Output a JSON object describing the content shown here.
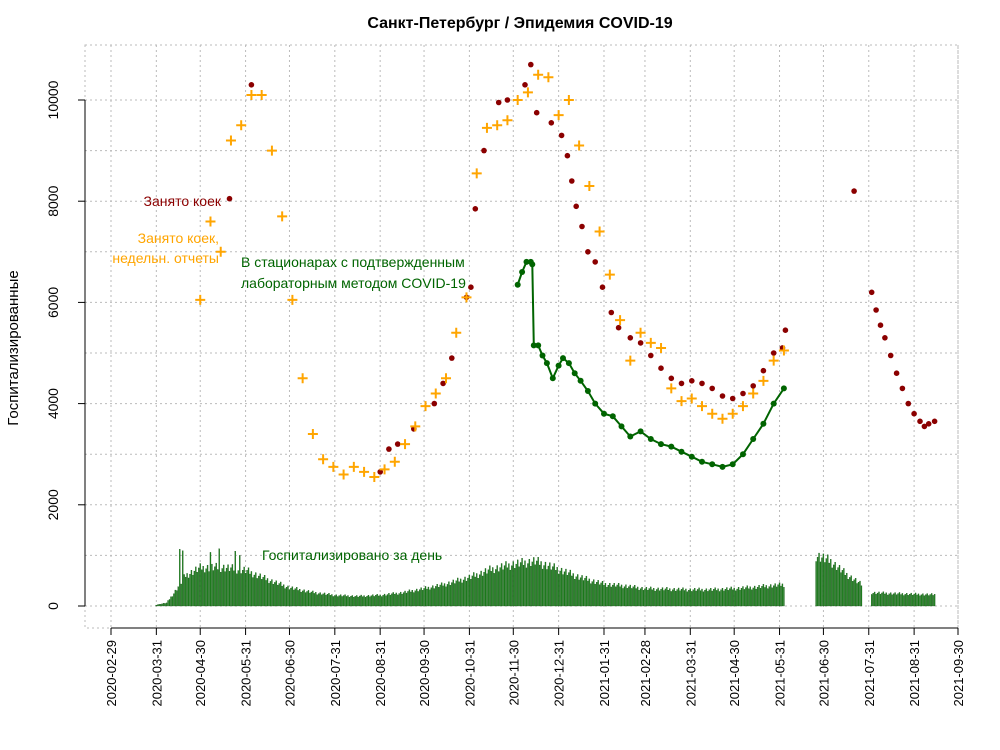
{
  "chart_data": {
    "type": "line",
    "title": "Санкт-Петербург / Эпидемия COVID-19",
    "ylabel": "Госпитализированные",
    "xlabel": "",
    "x_ticks": [
      "2020-02-29",
      "2020-03-31",
      "2020-04-30",
      "2020-05-31",
      "2020-06-30",
      "2020-07-31",
      "2020-08-31",
      "2020-09-30",
      "2020-10-31",
      "2020-11-30",
      "2020-12-31",
      "2021-01-31",
      "2021-02-28",
      "2021-03-31",
      "2021-04-30",
      "2021-05-31",
      "2021-06-30",
      "2021-07-31",
      "2021-08-31",
      "2021-09-30"
    ],
    "y_ticks": [
      0,
      2000,
      4000,
      6000,
      8000,
      10000
    ],
    "ylim": [
      0,
      10800
    ],
    "grid": true,
    "colors": {
      "occupied": "#8b0000",
      "weekly": "#ffa500",
      "confirmed": "#006400",
      "daily": "#228b22"
    },
    "annotations": {
      "occupied": "Занято коек",
      "weekly_line1": "Занято коек,",
      "weekly_line2": "недельн. отчеты",
      "confirmed_line1": "В стационарах с подтвержденным",
      "confirmed_line2": "лабораторным методом COVID-19",
      "daily": "Госпитализировано за день"
    },
    "series": [
      {
        "name": "Занято коек",
        "style": "points",
        "points": [
          [
            "2020-05-20",
            8050
          ],
          [
            "2020-06-04",
            10300
          ],
          [
            "2020-09-23",
            3500
          ],
          [
            "2020-10-07",
            4000
          ],
          [
            "2020-10-13",
            4400
          ],
          [
            "2020-10-19",
            4900
          ],
          [
            "2020-10-29",
            6100
          ],
          [
            "2020-11-01",
            6300
          ],
          [
            "2020-11-04",
            7850
          ],
          [
            "2020-11-10",
            9000
          ],
          [
            "2020-11-20",
            9950
          ],
          [
            "2020-11-26",
            10000
          ],
          [
            "2020-12-08",
            10300
          ],
          [
            "2020-12-12",
            10700
          ],
          [
            "2020-12-16",
            9750
          ],
          [
            "2020-08-31",
            2650
          ],
          [
            "2020-09-06",
            3100
          ],
          [
            "2020-09-12",
            3200
          ],
          [
            "2020-12-26",
            9550
          ],
          [
            "2021-01-02",
            9300
          ],
          [
            "2021-01-06",
            8900
          ],
          [
            "2021-01-09",
            8400
          ],
          [
            "2021-01-12",
            7900
          ],
          [
            "2021-01-16",
            7500
          ],
          [
            "2021-01-20",
            7000
          ],
          [
            "2021-01-25",
            6800
          ],
          [
            "2021-01-30",
            6300
          ],
          [
            "2021-02-05",
            5800
          ],
          [
            "2021-02-10",
            5500
          ],
          [
            "2021-02-18",
            5300
          ],
          [
            "2021-02-25",
            5200
          ],
          [
            "2021-03-04",
            4950
          ],
          [
            "2021-03-11",
            4700
          ],
          [
            "2021-03-18",
            4500
          ],
          [
            "2021-03-25",
            4400
          ],
          [
            "2021-04-01",
            4450
          ],
          [
            "2021-04-08",
            4400
          ],
          [
            "2021-04-15",
            4300
          ],
          [
            "2021-04-22",
            4150
          ],
          [
            "2021-04-29",
            4100
          ],
          [
            "2021-05-06",
            4200
          ],
          [
            "2021-05-13",
            4350
          ],
          [
            "2021-05-20",
            4650
          ],
          [
            "2021-05-27",
            5000
          ],
          [
            "2021-06-02",
            5100
          ],
          [
            "2021-06-04",
            5450
          ],
          [
            "2021-07-21",
            8200
          ],
          [
            "2021-08-02",
            6200
          ],
          [
            "2021-08-05",
            5850
          ],
          [
            "2021-08-08",
            5550
          ],
          [
            "2021-08-11",
            5300
          ],
          [
            "2021-08-15",
            4950
          ],
          [
            "2021-08-19",
            4600
          ],
          [
            "2021-08-23",
            4300
          ],
          [
            "2021-08-27",
            4000
          ],
          [
            "2021-08-31",
            3800
          ],
          [
            "2021-09-04",
            3650
          ],
          [
            "2021-09-07",
            3550
          ],
          [
            "2021-09-10",
            3600
          ],
          [
            "2021-09-14",
            3650
          ]
        ]
      },
      {
        "name": "Занято коек, недельн. отчеты",
        "style": "plus",
        "points": [
          [
            "2020-04-30",
            6050
          ],
          [
            "2020-05-07",
            7600
          ],
          [
            "2020-05-14",
            7000
          ],
          [
            "2020-05-21",
            9200
          ],
          [
            "2020-05-28",
            9500
          ],
          [
            "2020-06-04",
            10100
          ],
          [
            "2020-06-11",
            10100
          ],
          [
            "2020-06-18",
            9000
          ],
          [
            "2020-06-25",
            7700
          ],
          [
            "2020-07-02",
            6050
          ],
          [
            "2020-07-09",
            4500
          ],
          [
            "2020-07-16",
            3400
          ],
          [
            "2020-07-23",
            2900
          ],
          [
            "2020-07-30",
            2750
          ],
          [
            "2020-08-06",
            2600
          ],
          [
            "2020-08-13",
            2750
          ],
          [
            "2020-08-20",
            2650
          ],
          [
            "2020-08-27",
            2550
          ],
          [
            "2020-09-03",
            2700
          ],
          [
            "2020-09-10",
            2850
          ],
          [
            "2020-09-17",
            3200
          ],
          [
            "2020-09-24",
            3550
          ],
          [
            "2020-10-01",
            3950
          ],
          [
            "2020-10-08",
            4200
          ],
          [
            "2020-10-15",
            4500
          ],
          [
            "2020-10-22",
            5400
          ],
          [
            "2020-10-29",
            6100
          ],
          [
            "2020-11-05",
            8550
          ],
          [
            "2020-11-12",
            9450
          ],
          [
            "2020-11-19",
            9500
          ],
          [
            "2020-11-26",
            9600
          ],
          [
            "2020-12-03",
            10000
          ],
          [
            "2020-12-10",
            10150
          ],
          [
            "2020-12-17",
            10500
          ],
          [
            "2020-12-24",
            10450
          ],
          [
            "2020-12-31",
            9700
          ],
          [
            "2021-01-07",
            10000
          ],
          [
            "2021-01-14",
            9100
          ],
          [
            "2021-01-21",
            8300
          ],
          [
            "2021-01-28",
            7400
          ],
          [
            "2021-02-04",
            6550
          ],
          [
            "2021-02-11",
            5650
          ],
          [
            "2021-02-18",
            4850
          ],
          [
            "2021-02-25",
            5400
          ],
          [
            "2021-03-04",
            5200
          ],
          [
            "2021-03-11",
            5100
          ],
          [
            "2021-03-18",
            4300
          ],
          [
            "2021-03-25",
            4050
          ],
          [
            "2021-04-01",
            4100
          ],
          [
            "2021-04-08",
            3950
          ],
          [
            "2021-04-15",
            3800
          ],
          [
            "2021-04-22",
            3700
          ],
          [
            "2021-04-29",
            3800
          ],
          [
            "2021-05-06",
            3950
          ],
          [
            "2021-05-13",
            4200
          ],
          [
            "2021-05-20",
            4450
          ],
          [
            "2021-05-27",
            4850
          ],
          [
            "2021-06-03",
            5050
          ]
        ]
      },
      {
        "name": "В стационарах с подтвержденным лабораторным методом COVID-19",
        "style": "line",
        "points": [
          [
            "2020-12-03",
            6350
          ],
          [
            "2020-12-06",
            6600
          ],
          [
            "2020-12-09",
            6800
          ],
          [
            "2020-12-12",
            6800
          ],
          [
            "2020-12-13",
            6750
          ],
          [
            "2020-12-14",
            5150
          ],
          [
            "2020-12-17",
            5150
          ],
          [
            "2020-12-20",
            4950
          ],
          [
            "2020-12-23",
            4800
          ],
          [
            "2020-12-27",
            4500
          ],
          [
            "2020-12-31",
            4750
          ],
          [
            "2021-01-03",
            4900
          ],
          [
            "2021-01-07",
            4800
          ],
          [
            "2021-01-11",
            4600
          ],
          [
            "2021-01-15",
            4450
          ],
          [
            "2021-01-20",
            4250
          ],
          [
            "2021-01-25",
            4000
          ],
          [
            "2021-01-31",
            3800
          ],
          [
            "2021-02-06",
            3750
          ],
          [
            "2021-02-12",
            3550
          ],
          [
            "2021-02-18",
            3350
          ],
          [
            "2021-02-25",
            3450
          ],
          [
            "2021-03-04",
            3300
          ],
          [
            "2021-03-11",
            3200
          ],
          [
            "2021-03-18",
            3150
          ],
          [
            "2021-03-25",
            3050
          ],
          [
            "2021-04-01",
            2950
          ],
          [
            "2021-04-08",
            2850
          ],
          [
            "2021-04-15",
            2800
          ],
          [
            "2021-04-22",
            2750
          ],
          [
            "2021-04-29",
            2800
          ],
          [
            "2021-05-06",
            3000
          ],
          [
            "2021-05-13",
            3300
          ],
          [
            "2021-05-20",
            3600
          ],
          [
            "2021-05-27",
            4000
          ],
          [
            "2021-06-03",
            4300
          ]
        ]
      },
      {
        "name": "Госпитализировано за день",
        "style": "bars",
        "level_points": [
          [
            "2020-03-31",
            20
          ],
          [
            "2020-04-07",
            60
          ],
          [
            "2020-04-12",
            250
          ],
          [
            "2020-04-20",
            600
          ],
          [
            "2020-04-30",
            750
          ],
          [
            "2020-05-15",
            760
          ],
          [
            "2020-05-31",
            700
          ],
          [
            "2020-06-15",
            520
          ],
          [
            "2020-06-30",
            360
          ],
          [
            "2020-07-15",
            270
          ],
          [
            "2020-07-31",
            210
          ],
          [
            "2020-08-15",
            190
          ],
          [
            "2020-08-31",
            210
          ],
          [
            "2020-09-15",
            260
          ],
          [
            "2020-09-30",
            340
          ],
          [
            "2020-10-15",
            430
          ],
          [
            "2020-10-31",
            560
          ],
          [
            "2020-11-15",
            720
          ],
          [
            "2020-11-30",
            820
          ],
          [
            "2020-12-15",
            880
          ],
          [
            "2020-12-31",
            720
          ],
          [
            "2021-01-15",
            560
          ],
          [
            "2021-01-31",
            430
          ],
          [
            "2021-02-15",
            390
          ],
          [
            "2021-02-28",
            340
          ],
          [
            "2021-03-15",
            330
          ],
          [
            "2021-03-31",
            320
          ],
          [
            "2021-04-15",
            320
          ],
          [
            "2021-04-30",
            340
          ],
          [
            "2021-05-15",
            370
          ],
          [
            "2021-06-03",
            420
          ]
        ],
        "level_points_2": [
          [
            "2021-06-25",
            1000
          ],
          [
            "2021-07-05",
            880
          ],
          [
            "2021-07-15",
            640
          ],
          [
            "2021-07-26",
            420
          ]
        ],
        "level_points_3": [
          [
            "2021-08-02",
            260
          ],
          [
            "2021-08-20",
            240
          ],
          [
            "2021-09-14",
            220
          ]
        ],
        "spikes": [
          [
            "2020-04-16",
            1120
          ],
          [
            "2020-04-18",
            1090
          ],
          [
            "2020-05-07",
            1060
          ],
          [
            "2020-05-13",
            1130
          ],
          [
            "2020-05-24",
            1080
          ],
          [
            "2020-05-27",
            1000
          ]
        ]
      }
    ]
  }
}
